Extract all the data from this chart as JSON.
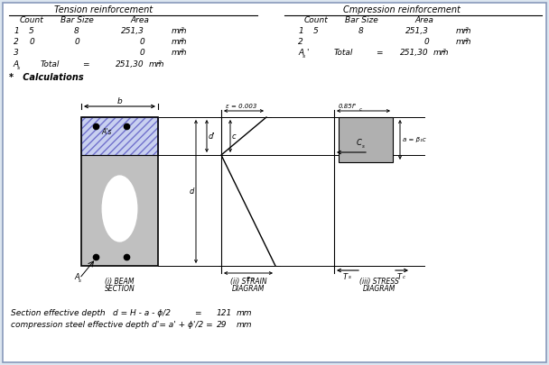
{
  "bg_color": "#dce6f0",
  "panel_color": "#ffffff",
  "title_tension": "Tension reinforcement",
  "title_compression": "Cmpression reinforcement",
  "col_headers": [
    "Count",
    "Bar Size",
    "Area"
  ],
  "tension_rows": [
    [
      "1",
      "5",
      "8",
      "251,3",
      "mm"
    ],
    [
      "2",
      "0",
      "0",
      "0",
      "mm"
    ],
    [
      "3",
      "",
      "",
      "0",
      "mm"
    ]
  ],
  "tension_total_label": "A",
  "tension_total_sub": "s",
  "tension_total_vals": [
    "Total",
    "=",
    "251,30",
    "mm"
  ],
  "compression_rows": [
    [
      "1",
      "5",
      "8",
      "251,3",
      "mm"
    ],
    [
      "2",
      "",
      "",
      "0",
      "mm"
    ]
  ],
  "compression_total_label": "A",
  "compression_total_sub": "s",
  "compression_total_prime": "'",
  "compression_total_vals": [
    "Total",
    "=",
    "251,30",
    "mm"
  ],
  "calc_label": "*   Calculations",
  "hatch_color": "#7070cc",
  "hatch_fill": "#c8d0f0",
  "beam_gray": "#c0c0c0",
  "stress_gray": "#b0b0b0"
}
